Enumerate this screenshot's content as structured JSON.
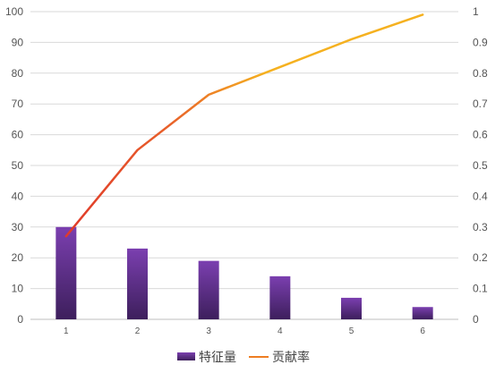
{
  "chart_data": {
    "type": "bar",
    "categories": [
      "1",
      "2",
      "3",
      "4",
      "5",
      "6"
    ],
    "series": [
      {
        "name": "特征量",
        "kind": "bar",
        "axis": "left",
        "values": [
          30,
          23,
          19,
          14,
          7,
          4
        ]
      },
      {
        "name": "贡献率",
        "kind": "line",
        "axis": "right",
        "values": [
          0.27,
          0.55,
          0.73,
          0.82,
          0.91,
          0.99
        ]
      }
    ],
    "y_left": {
      "ticks": [
        "0",
        "10",
        "20",
        "30",
        "40",
        "50",
        "60",
        "70",
        "80",
        "90",
        "100"
      ],
      "ylim": [
        0,
        100
      ]
    },
    "y_right": {
      "ticks": [
        "0",
        "0.1",
        "0.2",
        "0.3",
        "0.4",
        "0.5",
        "0.6",
        "0.7",
        "0.8",
        "0.9",
        "1"
      ],
      "ylim": [
        0,
        1
      ]
    },
    "grid": true,
    "legend_position": "bottom",
    "colors": {
      "bar_top": "#7b3fb0",
      "bar_bottom": "#3d1f5c",
      "line_start": "#e03a2a",
      "line_end": "#f5b120",
      "grid": "#d9d9d9"
    }
  }
}
